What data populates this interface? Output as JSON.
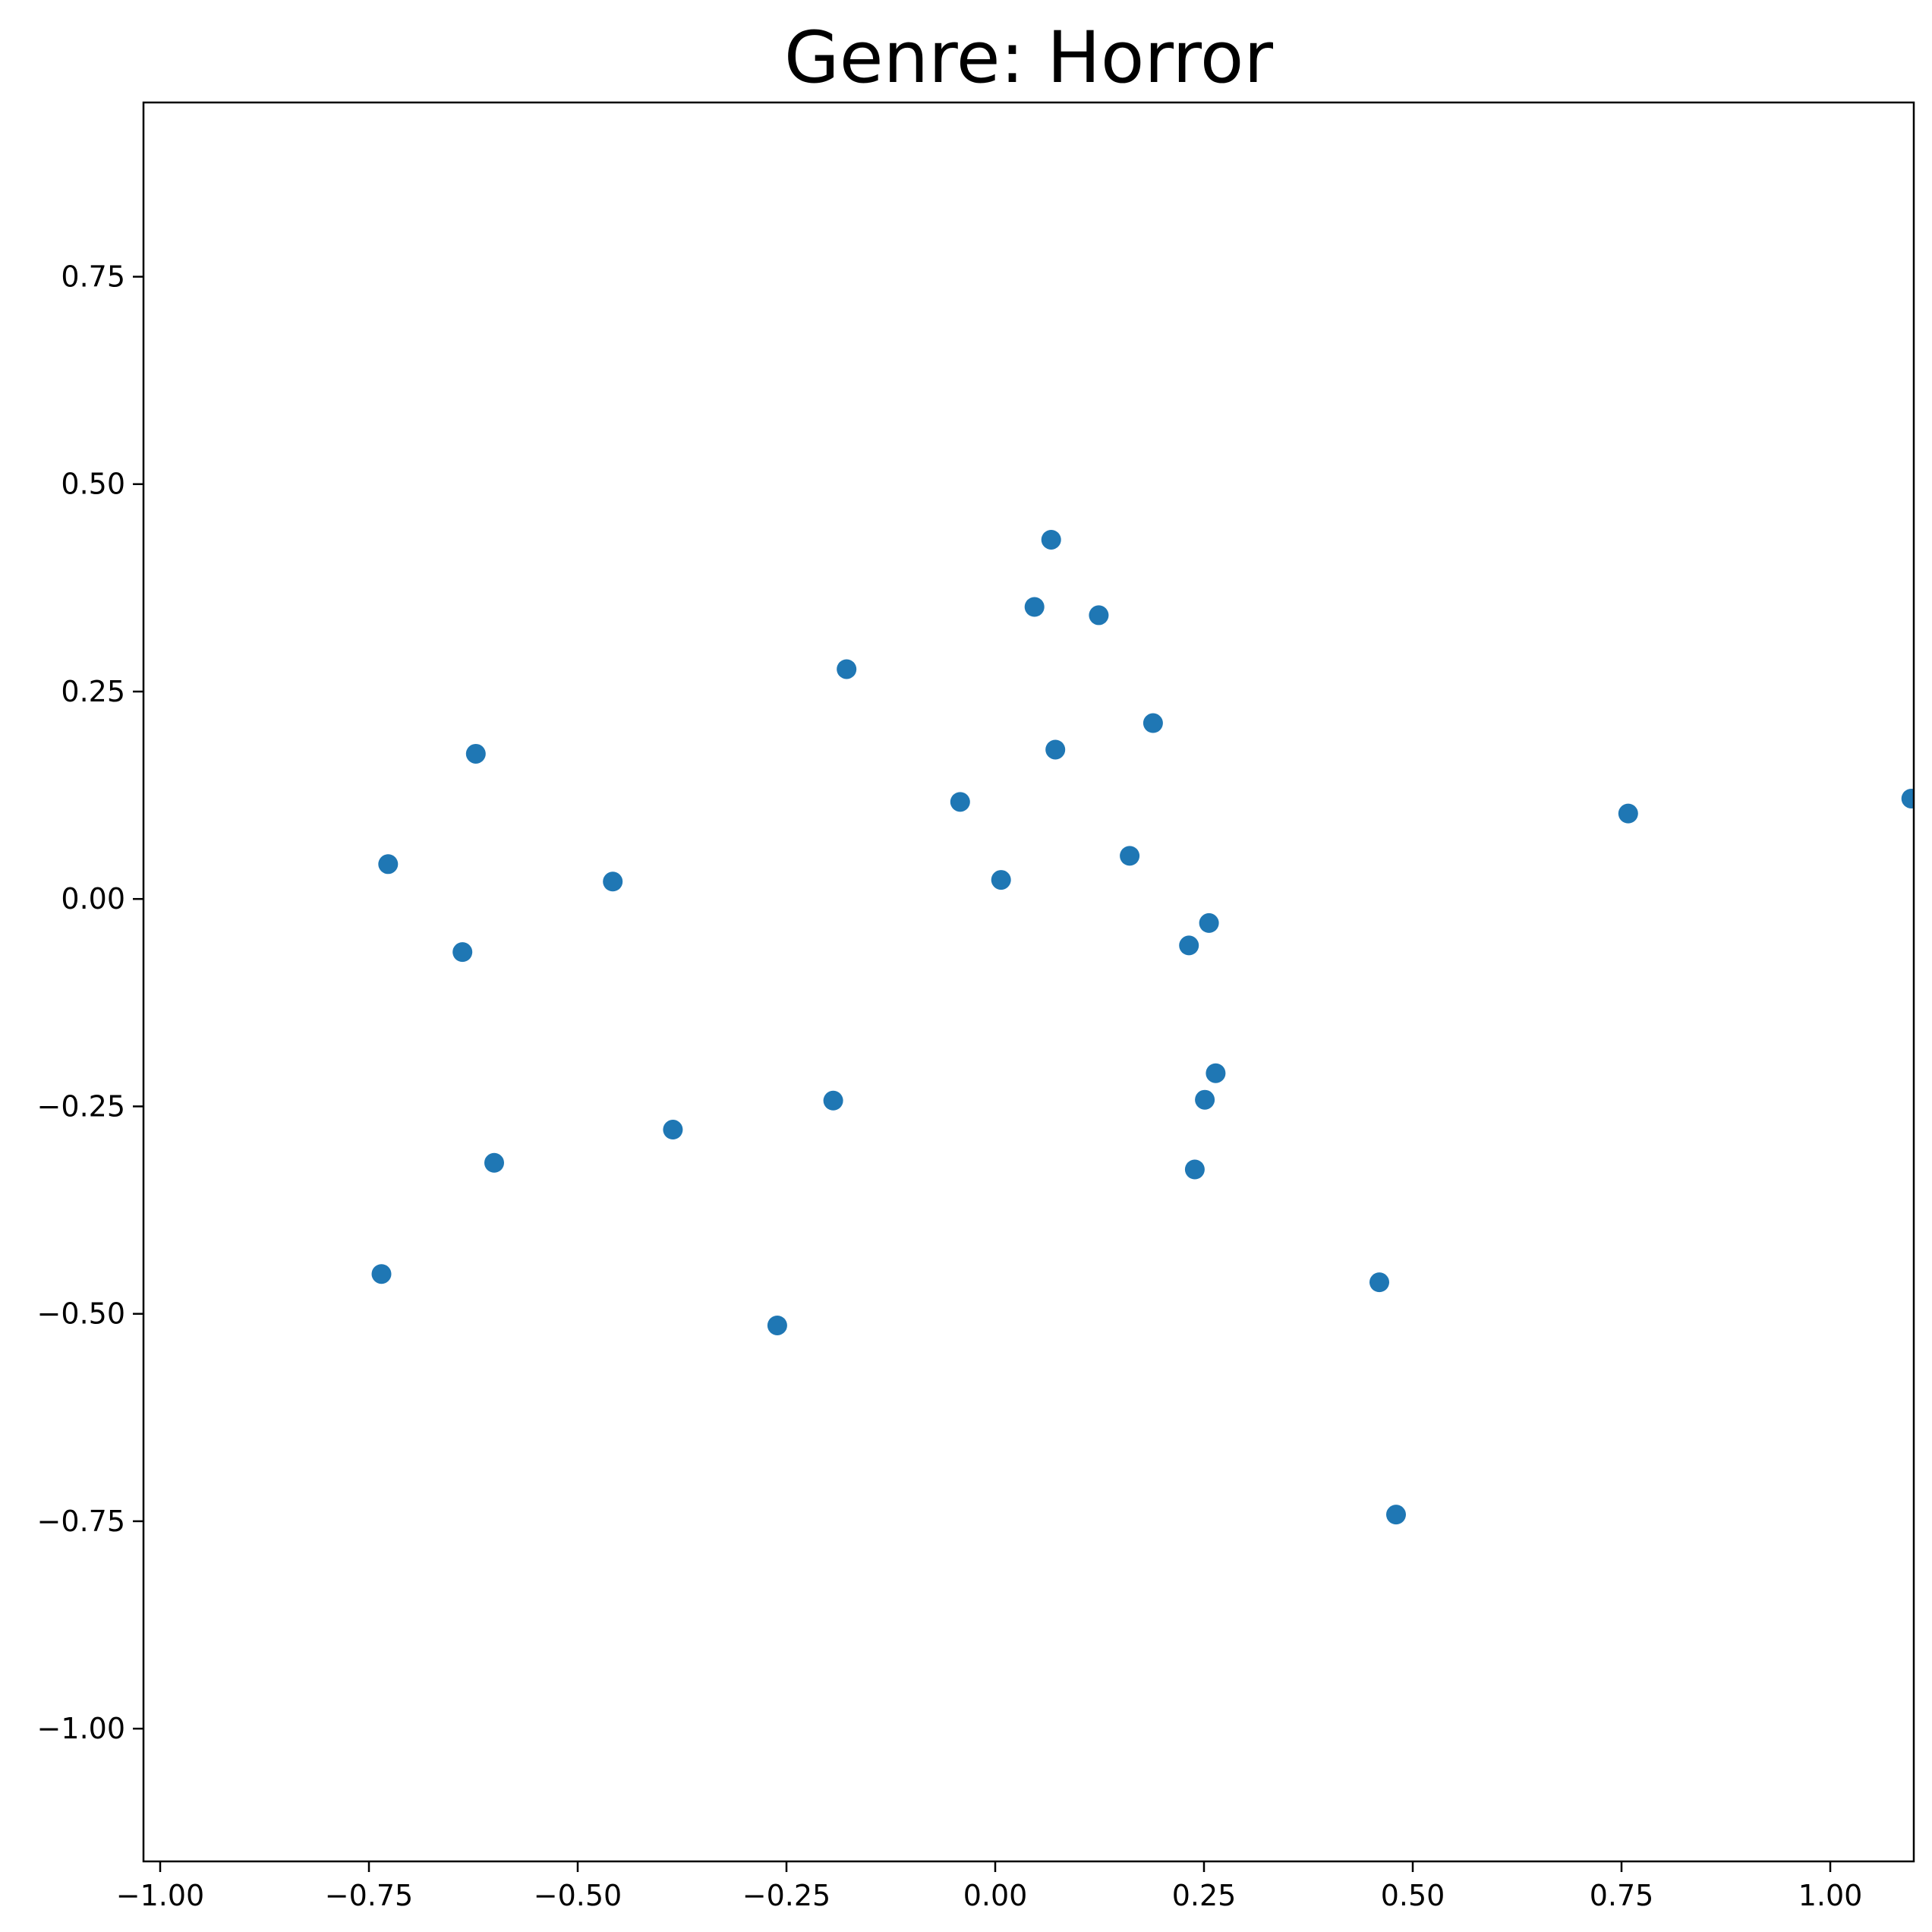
{
  "chart_data": {
    "type": "scatter",
    "title": "Genre: Horror",
    "xlabel": "",
    "ylabel": "",
    "xlim": [
      -1.02,
      1.1
    ],
    "ylim": [
      -1.16,
      0.96
    ],
    "grid": false,
    "legend": "none",
    "point_color": "#1f77b4",
    "xticks": [
      {
        "value": -1.0,
        "label": "−1.00"
      },
      {
        "value": -0.75,
        "label": "−0.75"
      },
      {
        "value": -0.5,
        "label": "−0.50"
      },
      {
        "value": -0.25,
        "label": "−0.25"
      },
      {
        "value": 0.0,
        "label": "0.00"
      },
      {
        "value": 0.25,
        "label": "0.25"
      },
      {
        "value": 0.5,
        "label": "0.50"
      },
      {
        "value": 0.75,
        "label": "0.75"
      },
      {
        "value": 1.0,
        "label": "1.00"
      }
    ],
    "yticks": [
      {
        "value": 0.75,
        "label": "0.75"
      },
      {
        "value": 0.5,
        "label": "0.50"
      },
      {
        "value": 0.25,
        "label": "0.25"
      },
      {
        "value": 0.0,
        "label": "0.00"
      },
      {
        "value": -0.25,
        "label": "−0.25"
      },
      {
        "value": -0.5,
        "label": "−0.50"
      },
      {
        "value": -0.75,
        "label": "−0.75"
      },
      {
        "value": -1.0,
        "label": "−1.00"
      }
    ],
    "points": [
      {
        "x": 0.067,
        "y": 0.433
      },
      {
        "x": 0.047,
        "y": 0.352
      },
      {
        "x": 0.124,
        "y": 0.342
      },
      {
        "x": -0.178,
        "y": 0.277
      },
      {
        "x": 0.189,
        "y": 0.212
      },
      {
        "x": 0.072,
        "y": 0.18
      },
      {
        "x": -0.622,
        "y": 0.175
      },
      {
        "x": -0.042,
        "y": 0.117
      },
      {
        "x": 0.758,
        "y": 0.103
      },
      {
        "x": 1.097,
        "y": 0.121
      },
      {
        "x": 0.161,
        "y": 0.052
      },
      {
        "x": -0.727,
        "y": 0.042
      },
      {
        "x": -0.458,
        "y": 0.021
      },
      {
        "x": 0.007,
        "y": 0.023
      },
      {
        "x": 0.256,
        "y": -0.029
      },
      {
        "x": 0.232,
        "y": -0.056
      },
      {
        "x": -0.638,
        "y": -0.064
      },
      {
        "x": 0.264,
        "y": -0.21
      },
      {
        "x": 0.251,
        "y": -0.242
      },
      {
        "x": -0.194,
        "y": -0.243
      },
      {
        "x": -0.386,
        "y": -0.278
      },
      {
        "x": -0.6,
        "y": -0.318
      },
      {
        "x": 0.239,
        "y": -0.326
      },
      {
        "x": -0.735,
        "y": -0.452
      },
      {
        "x": 0.46,
        "y": -0.462
      },
      {
        "x": -0.261,
        "y": -0.514
      },
      {
        "x": 0.48,
        "y": -0.742
      }
    ]
  }
}
